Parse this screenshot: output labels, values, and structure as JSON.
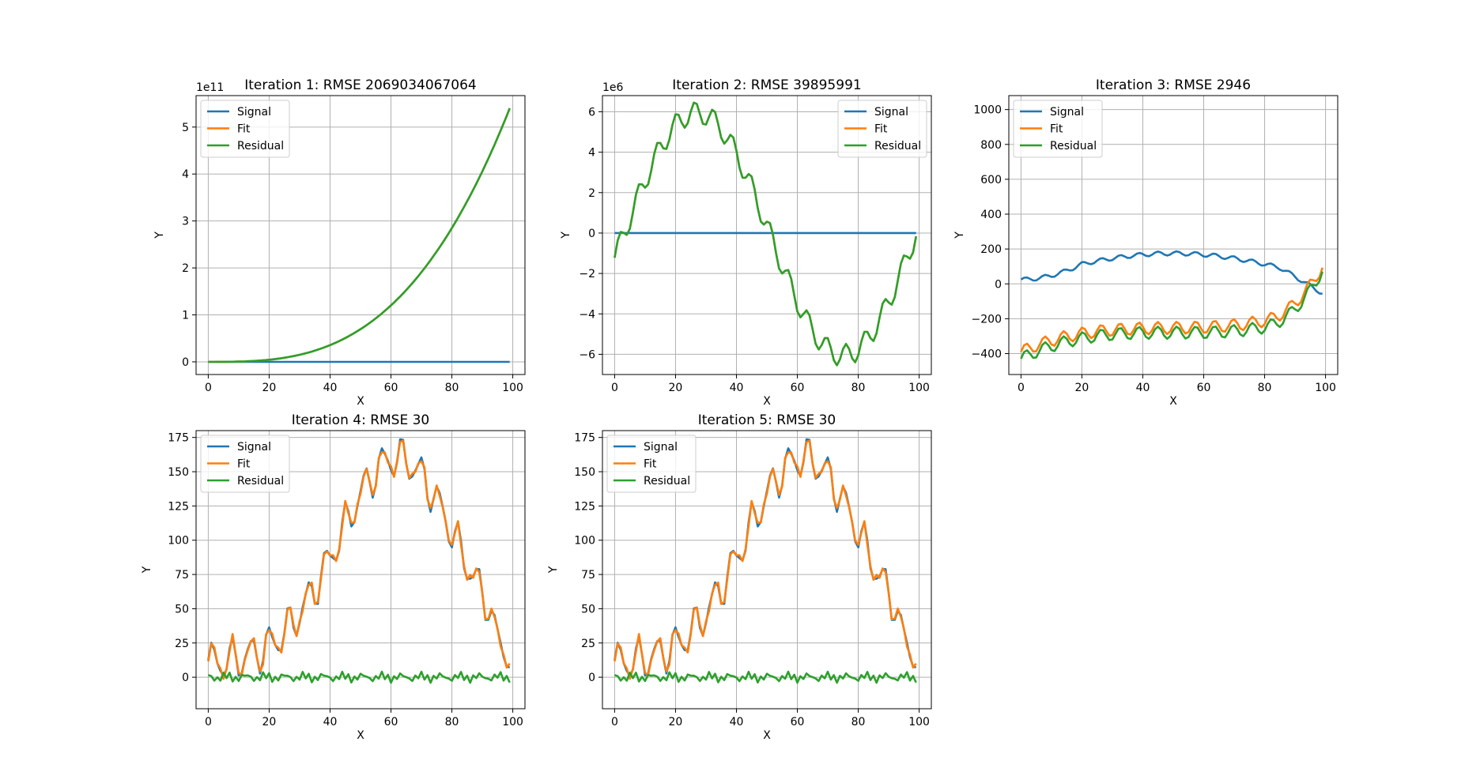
{
  "figure": {
    "background": "#ffffff"
  },
  "colors": {
    "Signal": "#1f77b4",
    "Fit": "#ff7f0e",
    "Residual": "#2ca02c"
  },
  "chart_data": [
    {
      "type": "line",
      "title": "Iteration 1: RMSE 2069034067064",
      "xlabel": "X",
      "ylabel": "Y",
      "xlim": [
        -4,
        104
      ],
      "ylim": [
        -0.27,
        5.67
      ],
      "y_offset_label": "1e11",
      "xticks": [
        0,
        20,
        40,
        60,
        80,
        100
      ],
      "yticks": [
        0,
        1,
        2,
        3,
        4,
        5
      ],
      "grid": true,
      "legend_position": "upper left",
      "series": [
        {
          "name": "Signal",
          "formula": "zero",
          "scale": 1
        },
        {
          "name": "Fit",
          "formula": "iter1",
          "scale": 100000000000.0
        },
        {
          "name": "Residual",
          "formula": "iter1",
          "scale": 100000000000.0
        }
      ]
    },
    {
      "type": "line",
      "title": "Iteration 2: RMSE 39895991",
      "xlabel": "X",
      "ylabel": "Y",
      "xlim": [
        -4,
        104
      ],
      "ylim": [
        -7.0,
        6.8
      ],
      "y_offset_label": "1e6",
      "xticks": [
        0,
        20,
        40,
        60,
        80,
        100
      ],
      "yticks": [
        -6,
        -4,
        -2,
        0,
        2,
        4,
        6
      ],
      "grid": true,
      "legend_position": "upper right",
      "series": [
        {
          "name": "Signal",
          "formula": "zero",
          "scale": 1
        },
        {
          "name": "Fit",
          "formula": "iter2",
          "scale": 1000000.0
        },
        {
          "name": "Residual",
          "formula": "iter2",
          "scale": 1000000.0
        }
      ]
    },
    {
      "type": "line",
      "title": "Iteration 3: RMSE 2946",
      "xlabel": "X",
      "ylabel": "Y",
      "xlim": [
        -4,
        104
      ],
      "ylim": [
        -520,
        1080
      ],
      "xticks": [
        0,
        20,
        40,
        60,
        80,
        100
      ],
      "yticks": [
        -400,
        -200,
        0,
        200,
        400,
        600,
        800,
        1000
      ],
      "grid": true,
      "legend_position": "upper left",
      "series": [
        {
          "name": "Signal",
          "formula": "iter3_signal",
          "scale": 1
        },
        {
          "name": "Fit",
          "formula": "iter3_fit",
          "scale": 1
        },
        {
          "name": "Residual",
          "formula": "iter3_resid",
          "scale": 1
        }
      ]
    },
    {
      "type": "line",
      "title": "Iteration 4: RMSE 30",
      "xlabel": "X",
      "ylabel": "Y",
      "xlim": [
        -4,
        104
      ],
      "ylim": [
        -23,
        180
      ],
      "xticks": [
        0,
        20,
        40,
        60,
        80,
        100
      ],
      "yticks": [
        0,
        25,
        50,
        75,
        100,
        125,
        150,
        175
      ],
      "grid": true,
      "legend_position": "upper left",
      "series": [
        {
          "name": "Signal",
          "formula": "iter4_signal",
          "scale": 1
        },
        {
          "name": "Fit",
          "formula": "iter4_fit",
          "scale": 1
        },
        {
          "name": "Residual",
          "formula": "iter4_resid",
          "scale": 1
        }
      ]
    },
    {
      "type": "line",
      "title": "Iteration 5: RMSE 30",
      "xlabel": "X",
      "ylabel": "Y",
      "xlim": [
        -4,
        104
      ],
      "ylim": [
        -23,
        180
      ],
      "xticks": [
        0,
        20,
        40,
        60,
        80,
        100
      ],
      "yticks": [
        0,
        25,
        50,
        75,
        100,
        125,
        150,
        175
      ],
      "grid": true,
      "legend_position": "upper left",
      "series": [
        {
          "name": "Signal",
          "formula": "iter4_signal",
          "scale": 1
        },
        {
          "name": "Fit",
          "formula": "iter4_fit",
          "scale": 1
        },
        {
          "name": "Residual",
          "formula": "iter4_resid",
          "scale": 1
        }
      ]
    }
  ]
}
